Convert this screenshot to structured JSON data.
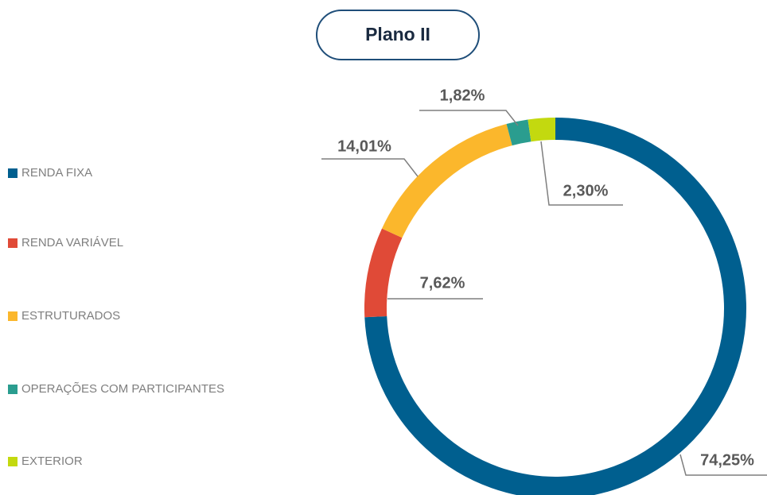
{
  "chart_data": {
    "type": "pie",
    "donut": true,
    "title": "Plano II",
    "categories": [
      "RENDA FIXA",
      "RENDA VARIÁVEL",
      "ESTRUTURADOS",
      "OPERAÇÕES COM PARTICIPANTES",
      "EXTERIOR"
    ],
    "values": [
      74.25,
      7.62,
      14.01,
      1.82,
      2.3
    ],
    "value_labels": [
      "74,25%",
      "7,62%",
      "14,01%",
      "1,82%",
      "2,30%"
    ],
    "colors": [
      "#005f8f",
      "#e04a37",
      "#fbb72c",
      "#2a9d8f",
      "#c3d90f"
    ],
    "legend": "left"
  }
}
